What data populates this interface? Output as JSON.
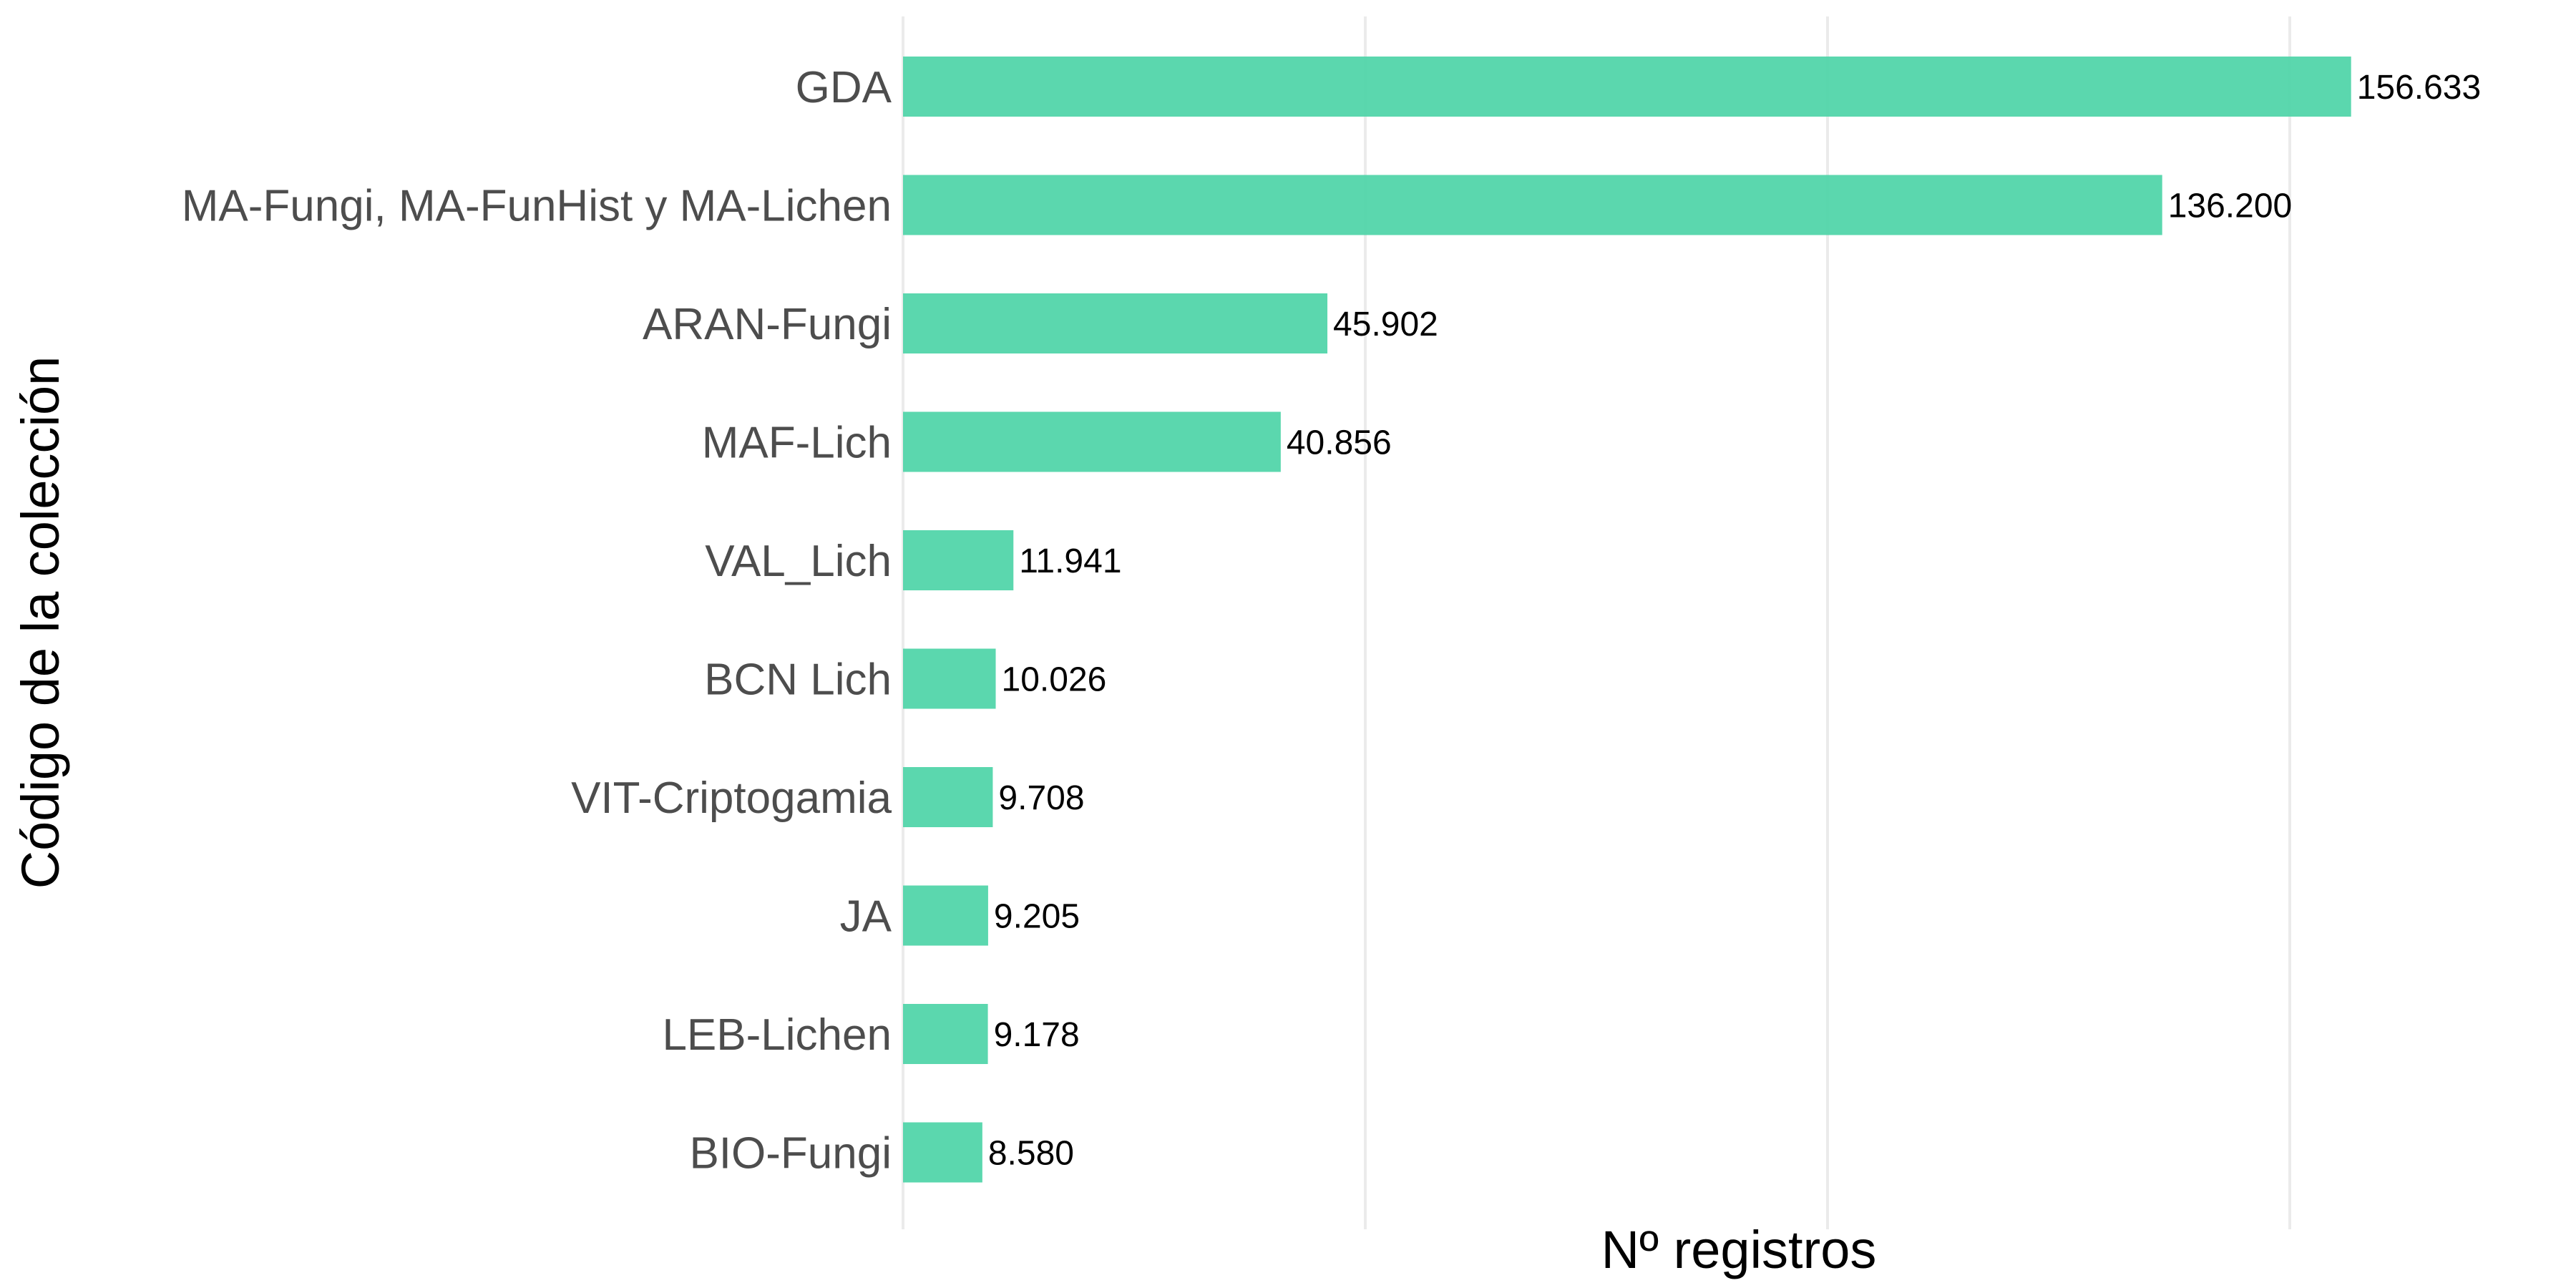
{
  "chart_data": {
    "type": "bar",
    "orientation": "horizontal",
    "title": "",
    "xlabel": "Nº registros",
    "ylabel": "Código de la colección",
    "categories": [
      "GDA",
      "MA-Fungi, MA-FunHist y MA-Lichen",
      "ARAN-Fungi",
      "MAF-Lich",
      "VAL_Lich",
      "BCN Lich",
      "VIT-Criptogamia",
      "JA",
      "LEB-Lichen",
      "BIO-Fungi"
    ],
    "values": [
      156633,
      136200,
      45902,
      40856,
      11941,
      10026,
      9708,
      9205,
      9178,
      8580
    ],
    "value_labels": [
      "156.633",
      "136.200",
      "45.902",
      "40.856",
      "11.941",
      "10.026",
      "9.708",
      "9.205",
      "9.178",
      "8.580"
    ],
    "xlim": [
      0,
      175000
    ],
    "x_gridlines": [
      0,
      50000,
      100000,
      150000
    ],
    "grid": true,
    "bar_color": "#4fd4a8"
  }
}
